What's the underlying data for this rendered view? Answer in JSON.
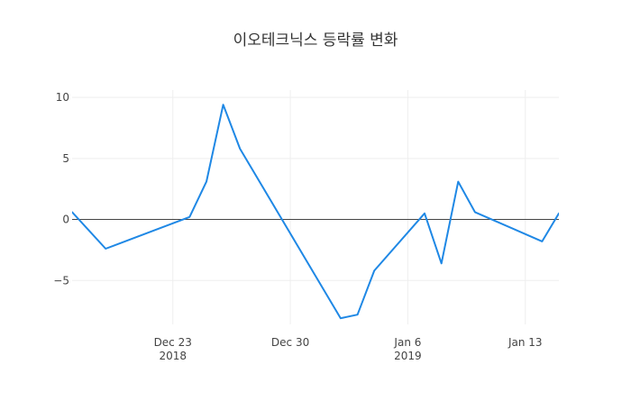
{
  "chart_data": {
    "type": "line",
    "title": "이오테크닉스 등락률 변화",
    "xlabel": "",
    "ylabel": "",
    "x_type": "date",
    "x_range": [
      "2018-12-17",
      "2019-01-15"
    ],
    "ylim": [
      -8.6,
      10.6
    ],
    "grid": true,
    "legend": "none",
    "x_ticks": [
      {
        "date": "2018-12-23",
        "label": "Dec 23",
        "sublabel": "2018"
      },
      {
        "date": "2018-12-30",
        "label": "Dec 30",
        "sublabel": ""
      },
      {
        "date": "2019-01-06",
        "label": "Jan 6",
        "sublabel": "2019"
      },
      {
        "date": "2019-01-13",
        "label": "Jan 13",
        "sublabel": ""
      }
    ],
    "y_ticks": [
      {
        "value": 10,
        "label": "10"
      },
      {
        "value": 5,
        "label": "5"
      },
      {
        "value": 0,
        "label": "0"
      },
      {
        "value": -5,
        "label": "−5"
      }
    ],
    "series": [
      {
        "color": "#1f88e5",
        "x": [
          "2018-12-17",
          "2018-12-19",
          "2018-12-24",
          "2018-12-25",
          "2018-12-26",
          "2018-12-27",
          "2019-01-02",
          "2019-01-03",
          "2019-01-04",
          "2019-01-07",
          "2019-01-08",
          "2019-01-09",
          "2019-01-10",
          "2019-01-14",
          "2019-01-15",
          "2019-01-16"
        ],
        "y": [
          0.6,
          -2.4,
          0.2,
          3.1,
          9.4,
          5.8,
          -8.1,
          -7.8,
          -4.2,
          0.5,
          -3.6,
          3.1,
          0.6,
          -1.8,
          0.5,
          0.5
        ]
      }
    ]
  }
}
